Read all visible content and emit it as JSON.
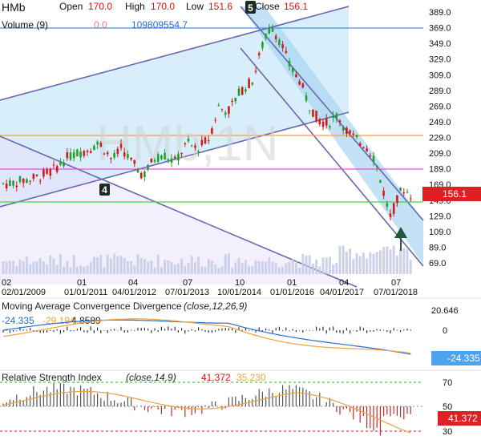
{
  "header": {
    "symbol": "HMb",
    "open_label": "Open",
    "open_value": "170.0",
    "high_label": "High",
    "high_value": "170.0",
    "low_label": "Low",
    "low_value": "151.6",
    "close_label": "Close",
    "close_value": "156.1"
  },
  "volume": {
    "label": "Volume (9)",
    "value_a": "0.0",
    "value_b": "109809554.7"
  },
  "watermark": "HMb,1N",
  "markers": {
    "wave_4": "4",
    "wave_5": "5"
  },
  "colors": {
    "up": "#22a02a",
    "down": "#d11a1a",
    "channel": "#6a66b4",
    "channel_fill": "#9fd3f3",
    "hline_blue": "#4a8fe0",
    "hline_orange": "#f0a040",
    "hline_magenta": "#e050e0",
    "hline_green": "#3ddc3d",
    "macd": "#2a6ccf",
    "signal": "#f0a040",
    "price_badge": "#e02020"
  },
  "chart_data": [
    {
      "type": "candlestick",
      "title": "HMb",
      "y_ticks": [
        "389.0",
        "369.0",
        "349.0",
        "329.0",
        "309.0",
        "289.0",
        "269.0",
        "249.0",
        "229.0",
        "209.0",
        "189.0",
        "169.0",
        "149.0",
        "129.0",
        "109.0",
        "89.0",
        "69.0"
      ],
      "ylim": [
        62,
        398
      ],
      "x_ticks": [
        "02",
        "02/01/2009",
        "01",
        "01/01/2011",
        "04",
        "04/01/2012",
        "07",
        "07/01/2013",
        "10",
        "10/01/2014",
        "01",
        "01/01/2016",
        "04",
        "04/01/2017",
        "07",
        "07/01/2018"
      ],
      "last_price": "156.1",
      "horizontal_levels": [
        {
          "value": 369,
          "color": "blue"
        },
        {
          "value": 236,
          "color": "orange"
        },
        {
          "value": 192,
          "color": "magenta"
        },
        {
          "value": 151,
          "color": "green"
        }
      ],
      "close_path": [
        [
          "2008-03",
          170
        ],
        [
          "2008-12",
          178
        ],
        [
          "2009-05",
          187
        ],
        [
          "2009-10",
          205
        ],
        [
          "2010-03",
          212
        ],
        [
          "2010-08",
          222
        ],
        [
          "2010-12",
          200
        ],
        [
          "2011-03",
          216
        ],
        [
          "2011-06",
          198
        ],
        [
          "2011-10",
          180
        ],
        [
          "2012-01",
          200
        ],
        [
          "2012-04",
          208
        ],
        [
          "2012-08",
          198
        ],
        [
          "2012-12",
          222
        ],
        [
          "2013-03",
          214
        ],
        [
          "2013-07",
          228
        ],
        [
          "2013-10",
          268
        ],
        [
          "2014-01",
          262
        ],
        [
          "2014-05",
          288
        ],
        [
          "2014-09",
          302
        ],
        [
          "2014-12",
          346
        ],
        [
          "2015-03",
          372
        ],
        [
          "2015-06",
          350
        ],
        [
          "2015-09",
          318
        ],
        [
          "2015-12",
          302
        ],
        [
          "2016-03",
          270
        ],
        [
          "2016-06",
          252
        ],
        [
          "2016-09",
          246
        ],
        [
          "2016-12",
          258
        ],
        [
          "2017-03",
          238
        ],
        [
          "2017-06",
          226
        ],
        [
          "2017-09",
          220
        ],
        [
          "2017-12",
          202
        ],
        [
          "2018-03",
          158
        ],
        [
          "2018-05",
          128
        ],
        [
          "2018-07",
          146
        ],
        [
          "2018-09",
          166
        ],
        [
          "2018-11",
          156.1
        ]
      ]
    },
    {
      "type": "bar",
      "title": "Volume (9)",
      "values_in": "volume bars beneath price"
    },
    {
      "type": "line",
      "title": "Moving Average Convergence Divergence",
      "params": "(close,12,26,9)",
      "macd_value": "-24.335",
      "signal_value": "-29.194",
      "histogram_value": "4.8589",
      "y_ticks": [
        "20.646",
        "0"
      ],
      "current_badge": "-24.335"
    },
    {
      "type": "line",
      "title": "Relative Strength Index",
      "params": "(close,14,9)",
      "rsi_value": "41.372",
      "signal_value": "35.230",
      "y_ticks": [
        "70",
        "50",
        "30"
      ],
      "current_badge": "41.372"
    }
  ]
}
